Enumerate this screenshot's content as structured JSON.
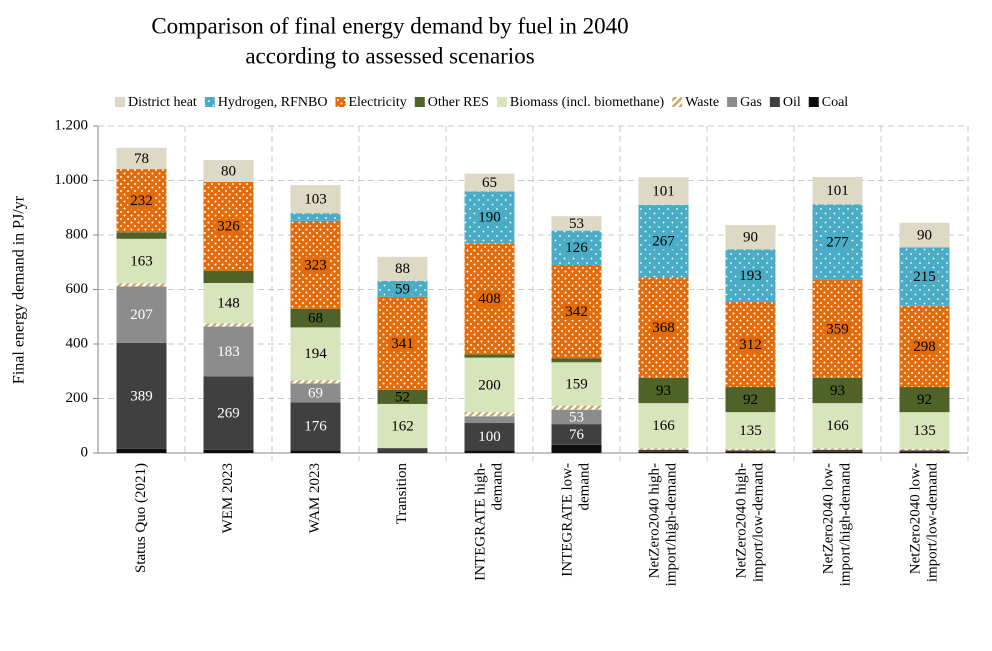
{
  "chart_data": {
    "type": "stacked_bar",
    "title": [
      "Comparison of final energy demand by fuel in 2040",
      "according to assessed scenarios"
    ],
    "y_label": "Final energy demand in PJ/yr",
    "categories": [
      "Status Quo (2021)",
      "WEM 2023",
      "WAM 2023",
      "Transition",
      "INTEGRATE high-demand",
      "INTEGRATE low-demand",
      "NetZero2040 high-import/high-demand",
      "NetZero2040 high-import/low-demand",
      "NetZero2040 low-import/high-demand",
      "NetZero2040 low-import/low-demand"
    ],
    "series": [
      {
        "name": "Coal",
        "color": "#0d0d0d",
        "values": [
          15,
          12,
          10,
          3,
          10,
          30,
          5,
          5,
          5,
          5
        ]
      },
      {
        "name": "Oil",
        "color": "#404040",
        "values": [
          389,
          269,
          176,
          15,
          100,
          76,
          7,
          5,
          7,
          5
        ]
      },
      {
        "name": "Gas",
        "color": "#8c8c8c",
        "values": [
          207,
          183,
          69,
          0,
          25,
          53,
          0,
          0,
          0,
          0
        ]
      },
      {
        "name": "Waste",
        "color": "#c9a96e",
        "pattern": "hatch",
        "values": [
          12,
          12,
          12,
          0,
          15,
          15,
          5,
          5,
          5,
          5
        ]
      },
      {
        "name": "Biomass (incl. biomethane)",
        "color": "#d7e4bc",
        "values": [
          163,
          148,
          194,
          162,
          200,
          159,
          166,
          135,
          166,
          135
        ]
      },
      {
        "name": "Other RES",
        "color": "#4f6228",
        "values": [
          24,
          45,
          68,
          52,
          12,
          15,
          93,
          92,
          93,
          92
        ]
      },
      {
        "name": "Electricity",
        "color": "#e36c0a",
        "pattern": "dots",
        "values": [
          232,
          326,
          323,
          341,
          408,
          342,
          368,
          312,
          359,
          298
        ]
      },
      {
        "name": "Hydrogen, RFNBO",
        "color": "#4bacc6",
        "pattern": "dots",
        "values": [
          0,
          0,
          28,
          59,
          190,
          126,
          267,
          193,
          277,
          215
        ]
      },
      {
        "name": "District heat",
        "color": "#ddd9c4",
        "values": [
          78,
          80,
          103,
          88,
          65,
          53,
          101,
          90,
          101,
          90
        ]
      }
    ],
    "ylim": [
      0,
      1200
    ],
    "yticks": [
      0,
      200,
      400,
      600,
      800,
      {
        "value": 1000,
        "label": "1.000"
      },
      {
        "value": 1200,
        "label": "1.200"
      }
    ],
    "grid": true,
    "legend": "top"
  }
}
